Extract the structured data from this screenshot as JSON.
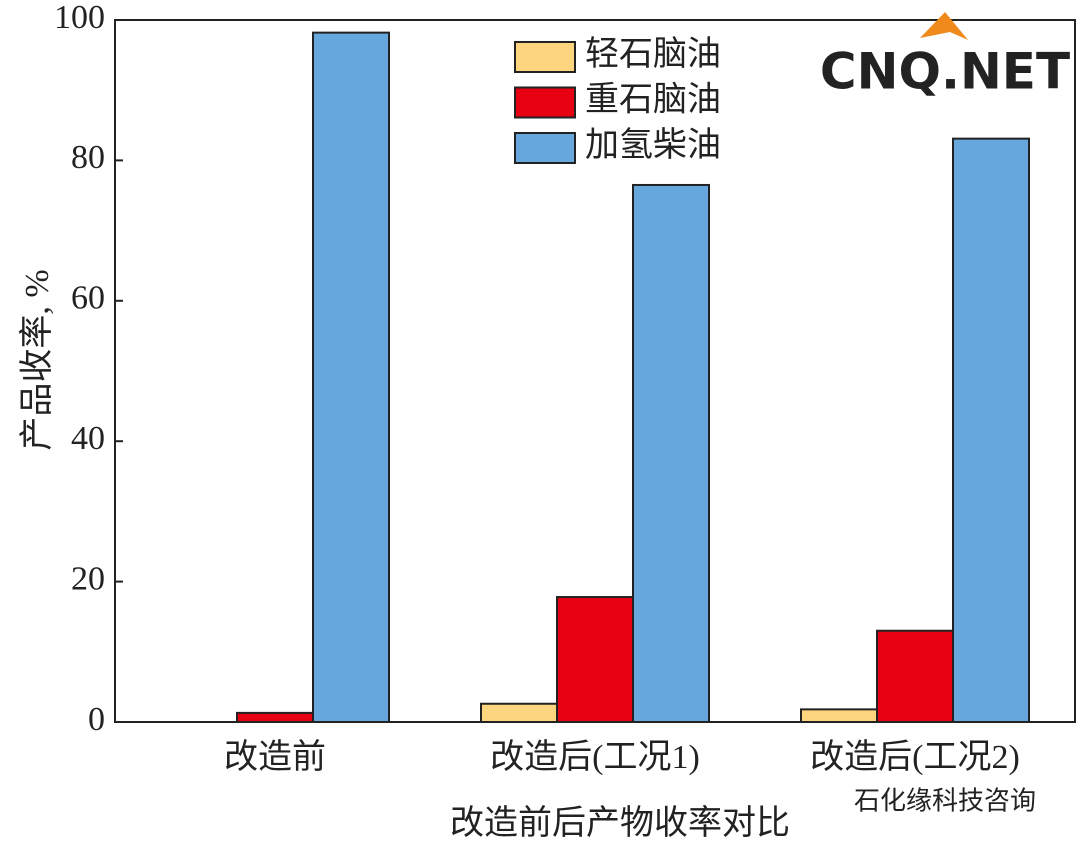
{
  "chart_data": {
    "type": "bar",
    "y_label": "产品收率, %",
    "x_label": "改造前后产物收率对比",
    "categories": [
      "改造前",
      "改造后(工况1)",
      "改造后(工况2)"
    ],
    "series": [
      {
        "name": "轻石脑油",
        "color": "#fdd57f",
        "values": [
          0,
          2.6,
          1.8
        ]
      },
      {
        "name": "重石脑油",
        "color": "#e60012",
        "values": [
          1.3,
          17.8,
          13.0
        ]
      },
      {
        "name": "加氢柴油",
        "color": "#66a8dd",
        "values": [
          98.2,
          76.5,
          83.1
        ]
      }
    ],
    "ylim": [
      0,
      100
    ],
    "yticks": [
      0,
      20,
      40,
      60,
      80,
      100
    ],
    "watermarks": [
      "CNQ.NET",
      "石化缘科技咨询"
    ]
  }
}
